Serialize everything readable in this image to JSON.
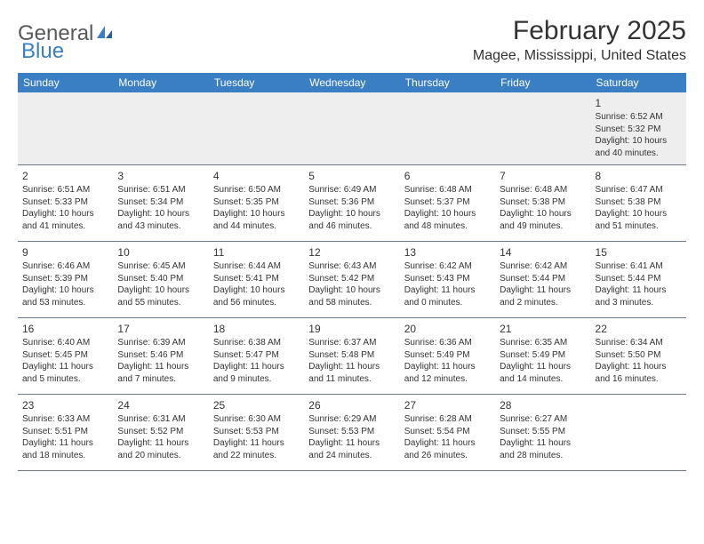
{
  "brand": {
    "part1": "General",
    "part2": "Blue"
  },
  "title": "February 2025",
  "location": "Magee, Mississippi, United States",
  "colors": {
    "header_bg": "#3a7fc4",
    "header_text": "#ffffff",
    "row_border": "#6b7b8c",
    "first_row_bg": "#eeeeee",
    "text": "#333333",
    "logo_gray": "#58595b",
    "logo_blue": "#3a7fc4"
  },
  "dayNames": [
    "Sunday",
    "Monday",
    "Tuesday",
    "Wednesday",
    "Thursday",
    "Friday",
    "Saturday"
  ],
  "weeks": [
    [
      null,
      null,
      null,
      null,
      null,
      null,
      {
        "n": "1",
        "sunrise": "6:52 AM",
        "sunset": "5:32 PM",
        "daylight": "10 hours and 40 minutes."
      }
    ],
    [
      {
        "n": "2",
        "sunrise": "6:51 AM",
        "sunset": "5:33 PM",
        "daylight": "10 hours and 41 minutes."
      },
      {
        "n": "3",
        "sunrise": "6:51 AM",
        "sunset": "5:34 PM",
        "daylight": "10 hours and 43 minutes."
      },
      {
        "n": "4",
        "sunrise": "6:50 AM",
        "sunset": "5:35 PM",
        "daylight": "10 hours and 44 minutes."
      },
      {
        "n": "5",
        "sunrise": "6:49 AM",
        "sunset": "5:36 PM",
        "daylight": "10 hours and 46 minutes."
      },
      {
        "n": "6",
        "sunrise": "6:48 AM",
        "sunset": "5:37 PM",
        "daylight": "10 hours and 48 minutes."
      },
      {
        "n": "7",
        "sunrise": "6:48 AM",
        "sunset": "5:38 PM",
        "daylight": "10 hours and 49 minutes."
      },
      {
        "n": "8",
        "sunrise": "6:47 AM",
        "sunset": "5:38 PM",
        "daylight": "10 hours and 51 minutes."
      }
    ],
    [
      {
        "n": "9",
        "sunrise": "6:46 AM",
        "sunset": "5:39 PM",
        "daylight": "10 hours and 53 minutes."
      },
      {
        "n": "10",
        "sunrise": "6:45 AM",
        "sunset": "5:40 PM",
        "daylight": "10 hours and 55 minutes."
      },
      {
        "n": "11",
        "sunrise": "6:44 AM",
        "sunset": "5:41 PM",
        "daylight": "10 hours and 56 minutes."
      },
      {
        "n": "12",
        "sunrise": "6:43 AM",
        "sunset": "5:42 PM",
        "daylight": "10 hours and 58 minutes."
      },
      {
        "n": "13",
        "sunrise": "6:42 AM",
        "sunset": "5:43 PM",
        "daylight": "11 hours and 0 minutes."
      },
      {
        "n": "14",
        "sunrise": "6:42 AM",
        "sunset": "5:44 PM",
        "daylight": "11 hours and 2 minutes."
      },
      {
        "n": "15",
        "sunrise": "6:41 AM",
        "sunset": "5:44 PM",
        "daylight": "11 hours and 3 minutes."
      }
    ],
    [
      {
        "n": "16",
        "sunrise": "6:40 AM",
        "sunset": "5:45 PM",
        "daylight": "11 hours and 5 minutes."
      },
      {
        "n": "17",
        "sunrise": "6:39 AM",
        "sunset": "5:46 PM",
        "daylight": "11 hours and 7 minutes."
      },
      {
        "n": "18",
        "sunrise": "6:38 AM",
        "sunset": "5:47 PM",
        "daylight": "11 hours and 9 minutes."
      },
      {
        "n": "19",
        "sunrise": "6:37 AM",
        "sunset": "5:48 PM",
        "daylight": "11 hours and 11 minutes."
      },
      {
        "n": "20",
        "sunrise": "6:36 AM",
        "sunset": "5:49 PM",
        "daylight": "11 hours and 12 minutes."
      },
      {
        "n": "21",
        "sunrise": "6:35 AM",
        "sunset": "5:49 PM",
        "daylight": "11 hours and 14 minutes."
      },
      {
        "n": "22",
        "sunrise": "6:34 AM",
        "sunset": "5:50 PM",
        "daylight": "11 hours and 16 minutes."
      }
    ],
    [
      {
        "n": "23",
        "sunrise": "6:33 AM",
        "sunset": "5:51 PM",
        "daylight": "11 hours and 18 minutes."
      },
      {
        "n": "24",
        "sunrise": "6:31 AM",
        "sunset": "5:52 PM",
        "daylight": "11 hours and 20 minutes."
      },
      {
        "n": "25",
        "sunrise": "6:30 AM",
        "sunset": "5:53 PM",
        "daylight": "11 hours and 22 minutes."
      },
      {
        "n": "26",
        "sunrise": "6:29 AM",
        "sunset": "5:53 PM",
        "daylight": "11 hours and 24 minutes."
      },
      {
        "n": "27",
        "sunrise": "6:28 AM",
        "sunset": "5:54 PM",
        "daylight": "11 hours and 26 minutes."
      },
      {
        "n": "28",
        "sunrise": "6:27 AM",
        "sunset": "5:55 PM",
        "daylight": "11 hours and 28 minutes."
      },
      null
    ]
  ],
  "labels": {
    "sunrise": "Sunrise:",
    "sunset": "Sunset:",
    "daylight": "Daylight:"
  }
}
